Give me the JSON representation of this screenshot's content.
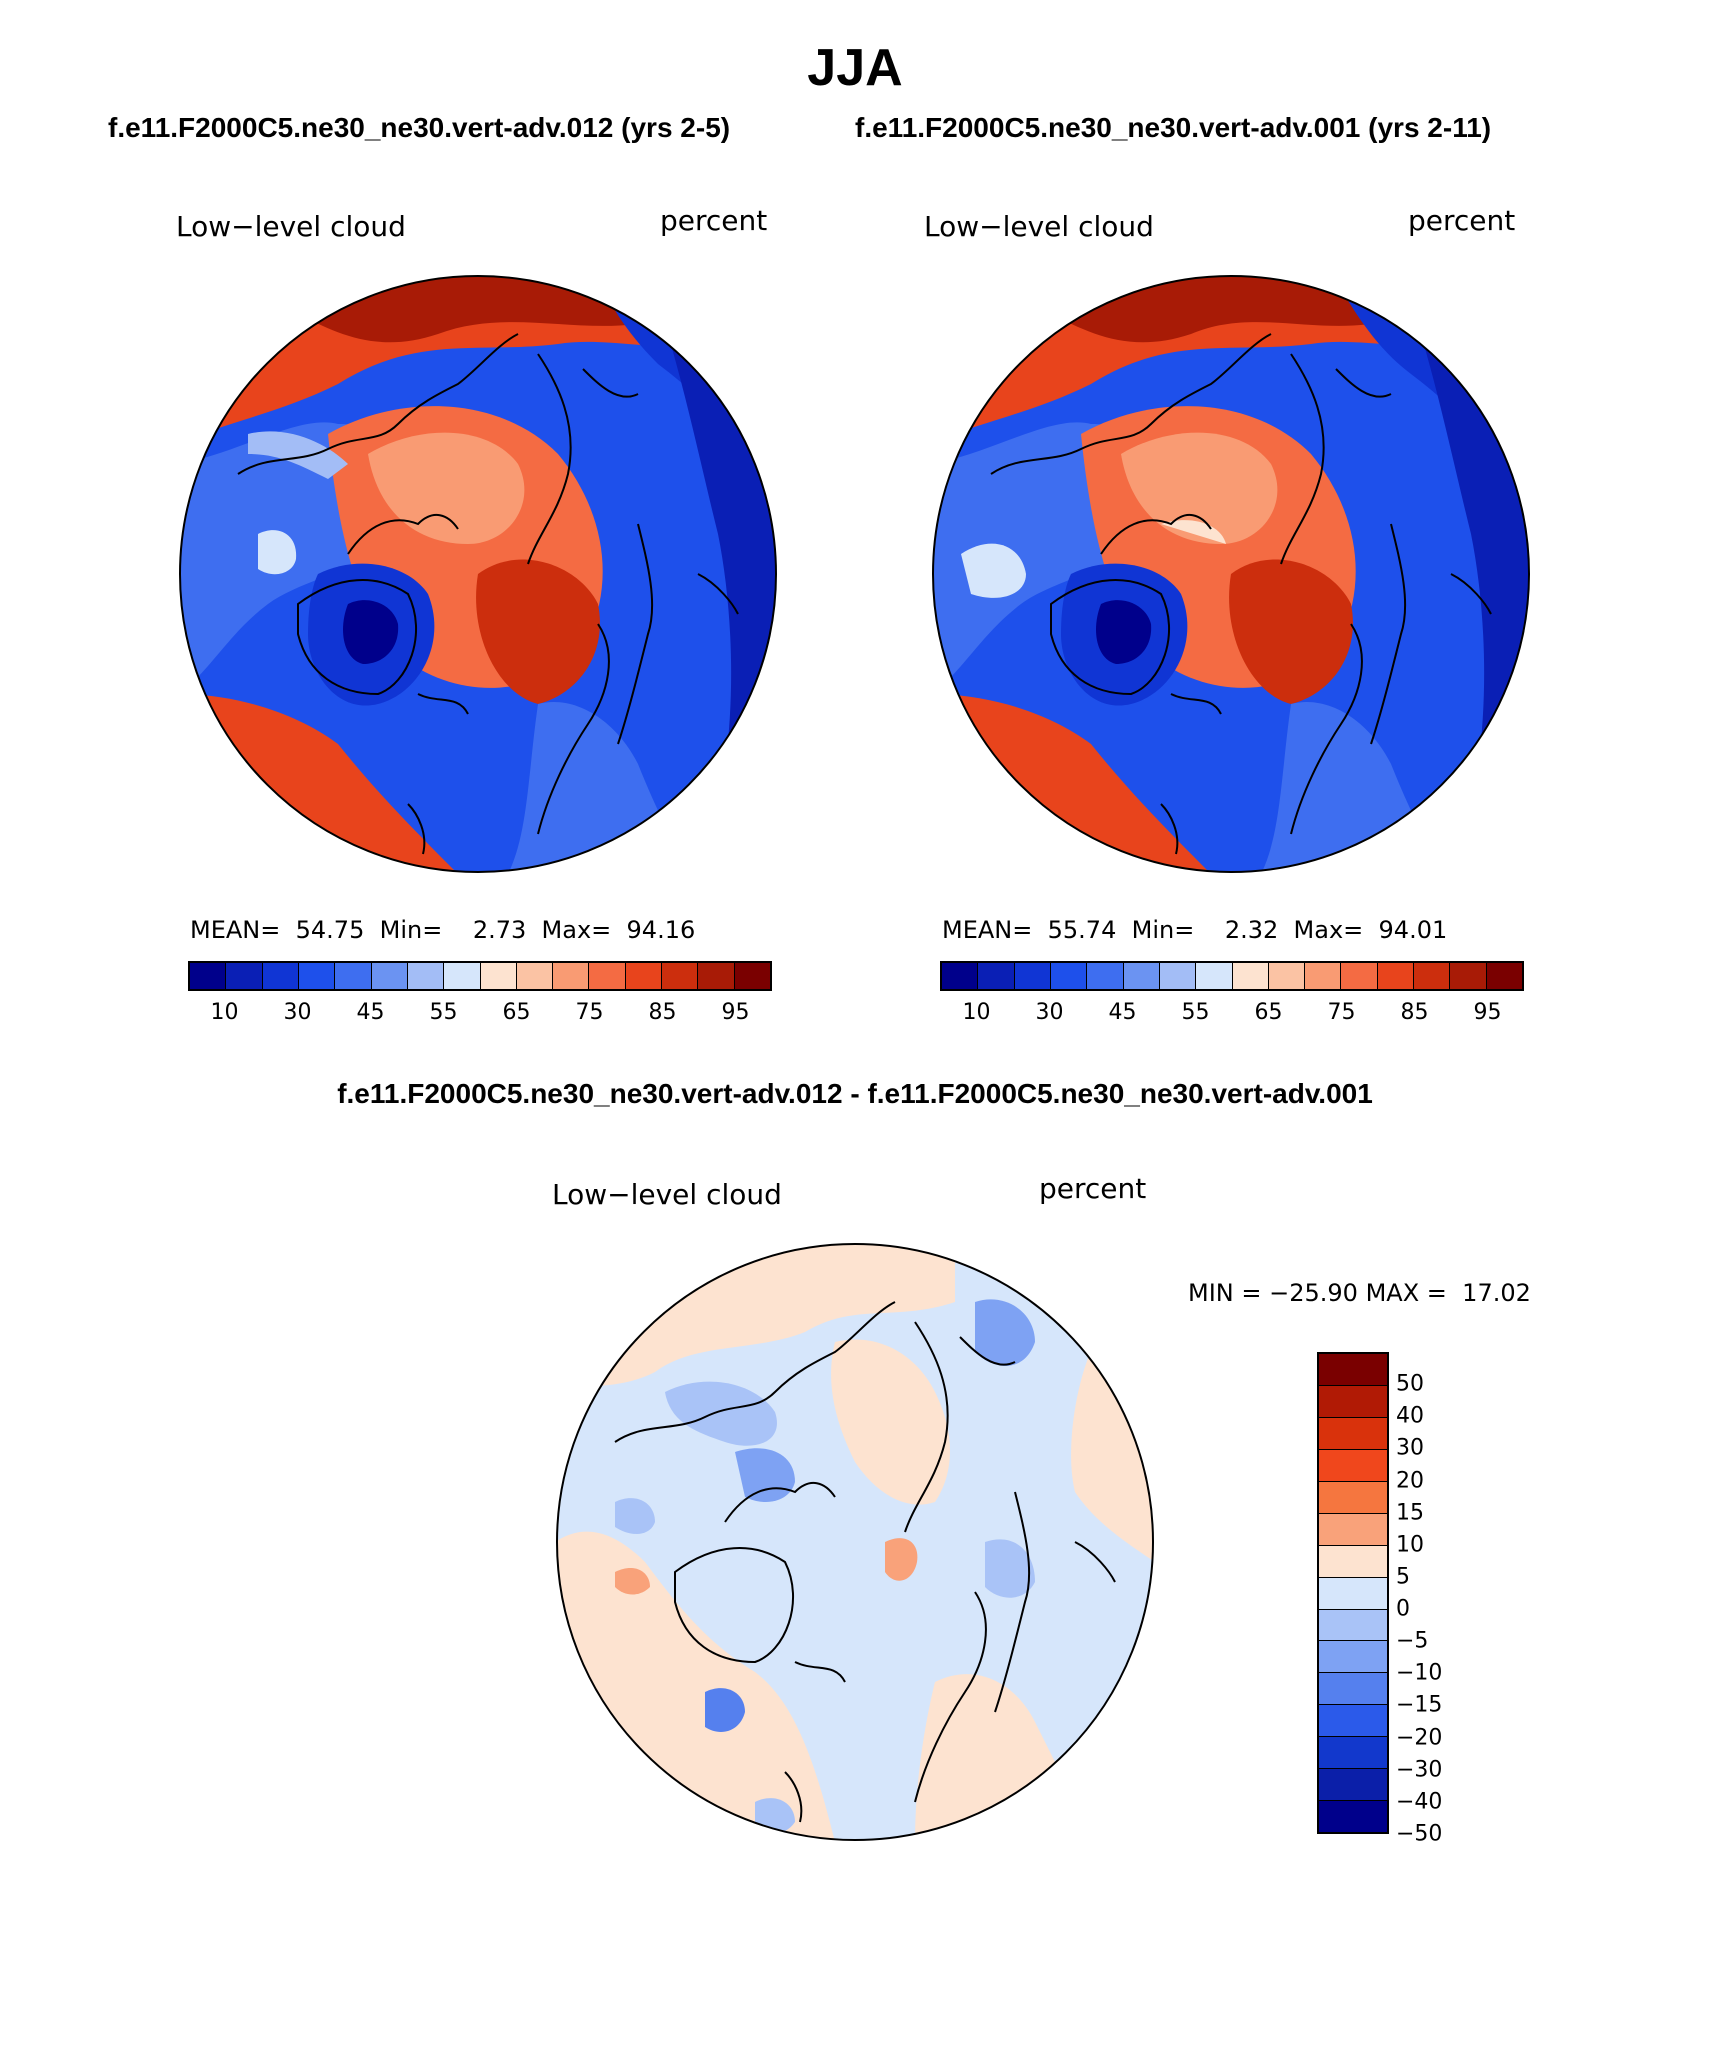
{
  "figure": {
    "title": "JJA",
    "subtitle_left": "f.e11.F2000C5.ne30_ne30.vert-adv.012 (yrs 2-5)",
    "subtitle_right": "f.e11.F2000C5.ne30_ne30.vert-adv.001 (yrs 2-11)",
    "diff_title": "f.e11.F2000C5.ne30_ne30.vert-adv.012 - f.e11.F2000C5.ne30_ne30.vert-adv.001"
  },
  "panels": [
    {
      "variable": "Low−level cloud",
      "units": "percent",
      "mean_label": "MEAN=",
      "mean": "54.75",
      "min_label": "Min=",
      "min": "2.73",
      "max_label": "Max=",
      "max": "94.16"
    },
    {
      "variable": "Low−level cloud",
      "units": "percent",
      "mean_label": "MEAN=",
      "mean": "55.74",
      "min_label": "Min=",
      "min": "2.32",
      "max_label": "Max=",
      "max": "94.01"
    }
  ],
  "diff_panel": {
    "variable": "Low−level cloud",
    "units": "percent",
    "min_label": "MIN =",
    "min": "−25.90",
    "max_label": "MAX =",
    "max": "17.02"
  },
  "colorbar_abs": {
    "tick_labels": [
      "10",
      "30",
      "45",
      "55",
      "65",
      "75",
      "85",
      "95"
    ],
    "colors": [
      "#00008b",
      "#0a1fb5",
      "#1035d4",
      "#1e50eb",
      "#3e6ef0",
      "#6b93f2",
      "#a3bdf6",
      "#d6e6fb",
      "#fde3d0",
      "#fbc3a4",
      "#f99b73",
      "#f46b43",
      "#e8441c",
      "#cc2e0d",
      "#a81b06",
      "#7a0000"
    ]
  },
  "colorbar_diff": {
    "tick_labels": [
      "50",
      "40",
      "30",
      "20",
      "15",
      "10",
      "5",
      "0",
      "−5",
      "−10",
      "−15",
      "−20",
      "−30",
      "−40",
      "−50"
    ],
    "colors": [
      "#7a0000",
      "#b11a05",
      "#d9320c",
      "#f0471c",
      "#f5763f",
      "#f9a27a",
      "#fde3d0",
      "#d6e6fb",
      "#a9c3f7",
      "#7ea2f3",
      "#5580ee",
      "#2b5aea",
      "#1238cc",
      "#0b1fa9",
      "#00008b"
    ]
  },
  "chart_data": {
    "type": "heatmap",
    "projection": "north polar stereographic",
    "season": "JJA",
    "variable": "Low-level cloud",
    "units": "percent",
    "maps": [
      {
        "case": "f.e11.F2000C5.ne30_ne30.vert-adv.012 (yrs 2-5)",
        "mean": 54.75,
        "min": 2.73,
        "max": 94.16,
        "levels": [
          10,
          30,
          45,
          55,
          65,
          75,
          85,
          95
        ]
      },
      {
        "case": "f.e11.F2000C5.ne30_ne30.vert-adv.001 (yrs 2-11)",
        "mean": 55.74,
        "min": 2.32,
        "max": 94.01,
        "levels": [
          10,
          30,
          45,
          55,
          65,
          75,
          85,
          95
        ]
      },
      {
        "case": "f.e11.F2000C5.ne30_ne30.vert-adv.012 - f.e11.F2000C5.ne30_ne30.vert-adv.001",
        "min": -25.9,
        "max": 17.02,
        "levels": [
          -50,
          -40,
          -30,
          -20,
          -15,
          -10,
          -5,
          0,
          5,
          10,
          15,
          20,
          30,
          40,
          50
        ]
      }
    ]
  }
}
